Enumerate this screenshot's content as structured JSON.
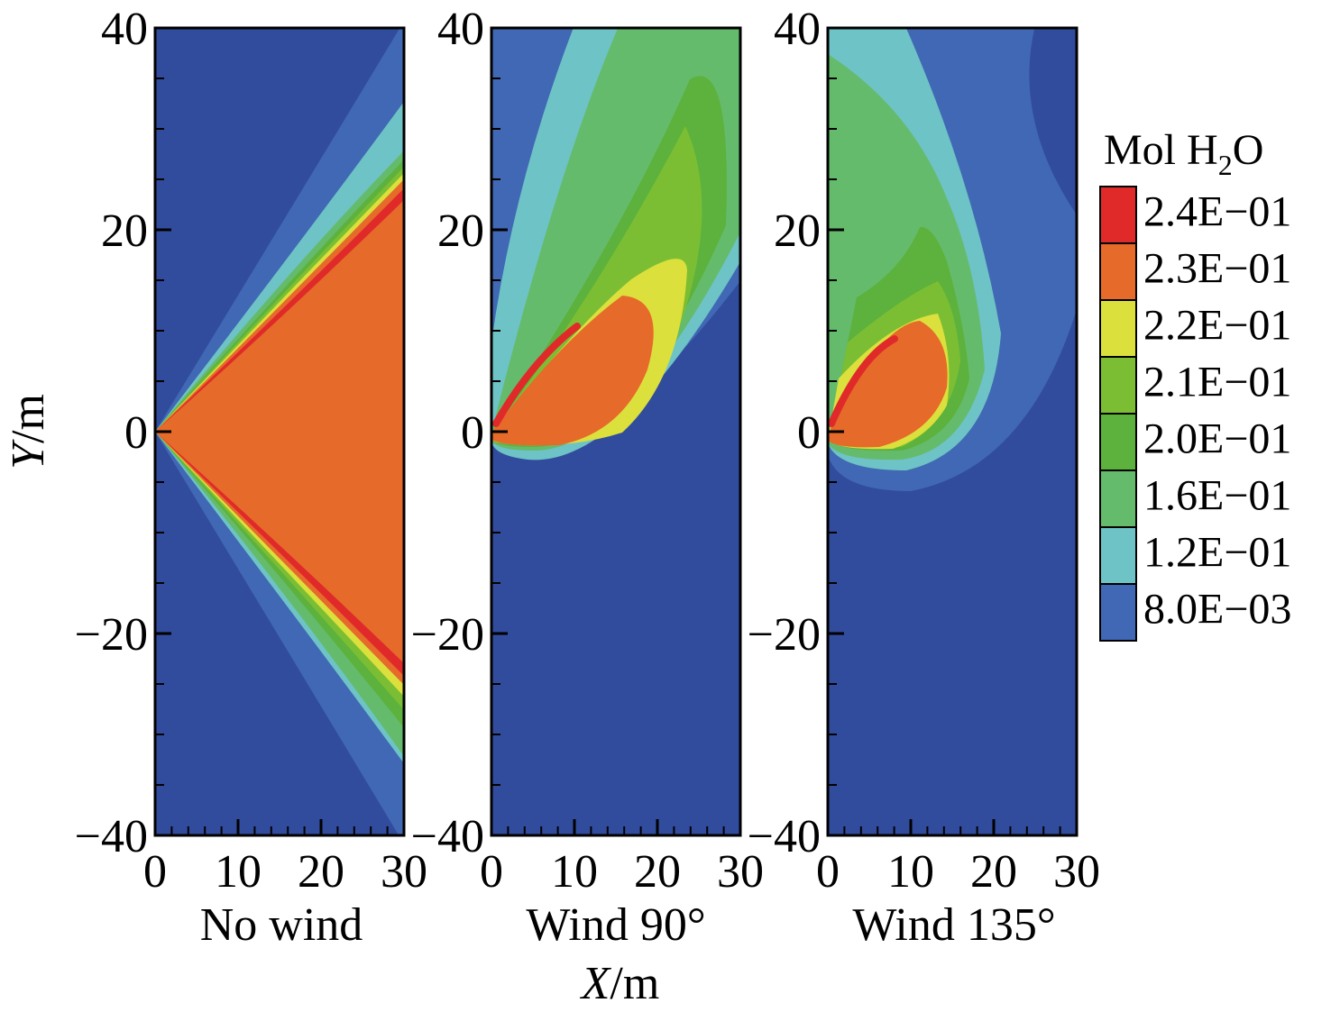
{
  "chart_data": {
    "type": "heatmap",
    "quantity_label": "Mol H",
    "quantity_sub": "2",
    "quantity_tail": "O",
    "xlabel_italic": "X",
    "xlabel_unit": "/m",
    "ylabel_italic": "Y",
    "ylabel_unit": "/m",
    "xlim": [
      0,
      30
    ],
    "ylim": [
      -40,
      40
    ],
    "x_ticks": [
      "0",
      "10",
      "20",
      "30"
    ],
    "y_ticks": [
      "40",
      "20",
      "0",
      "−20",
      "−40"
    ],
    "levels": [
      {
        "label": "2.4E−01",
        "value": 0.24,
        "color": "#e02a2a"
      },
      {
        "label": "2.3E−01",
        "value": 0.23,
        "color": "#e66a2a"
      },
      {
        "label": "2.2E−01",
        "value": 0.22,
        "color": "#dbe03c"
      },
      {
        "label": "2.1E−01",
        "value": 0.21,
        "color": "#7cbe33"
      },
      {
        "label": "2.0E−01",
        "value": 0.2,
        "color": "#5cb23c"
      },
      {
        "label": "1.6E−01",
        "value": 0.16,
        "color": "#65bb6c"
      },
      {
        "label": "1.2E−01",
        "value": 0.12,
        "color": "#6ec3c6"
      },
      {
        "label": "8.0E−03",
        "value": 0.008,
        "color": "#4068b4"
      }
    ],
    "background_color": "#324c9d",
    "panels": [
      {
        "title": "No wind",
        "wind_direction": "none"
      },
      {
        "title": "Wind 90°",
        "wind_direction": 90
      },
      {
        "title": "Wind 135°",
        "wind_direction": 135
      }
    ]
  }
}
